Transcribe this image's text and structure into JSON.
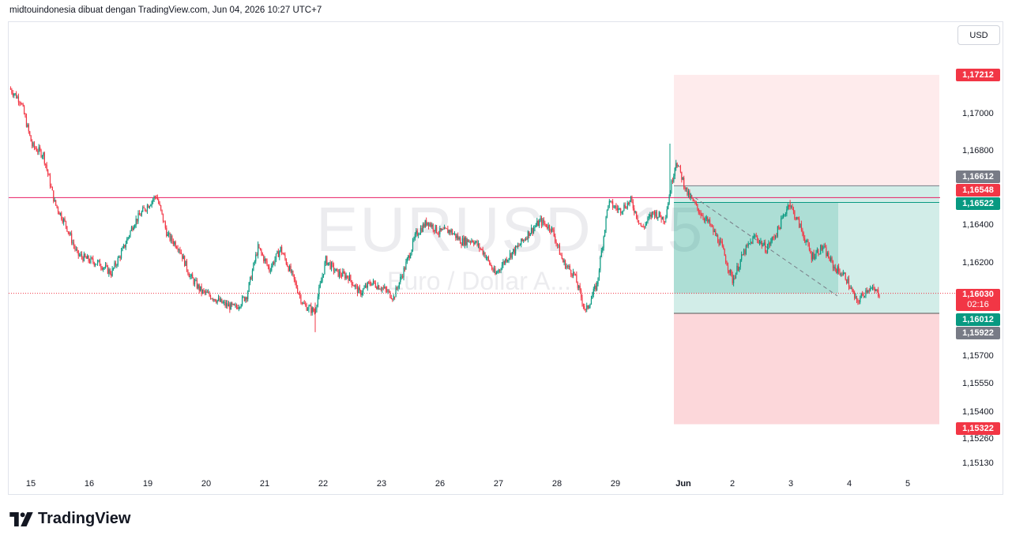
{
  "header": {
    "text": "midtouindonesia dibuat dengan TradingView.com, Jun 04, 2026 10:27 UTC+7"
  },
  "currency_button": "USD",
  "watermark": {
    "symbol": "EURUSD, 15",
    "description": "Euro / Dollar A..."
  },
  "logo": {
    "text": "TradingView",
    "icon": "tradingview-logo-icon"
  },
  "price_labels": {
    "stop_top": "1,17212",
    "entry_high": "1,16612",
    "level_line": "1,16548",
    "target_entry": "1,16522",
    "current_price": "1,16030",
    "countdown": "02:16",
    "position_low": "1,16012",
    "stop_line": "1,15922",
    "stop_bottom": "1,15322"
  },
  "colors": {
    "bull": "#089981",
    "bear": "#f23645",
    "level": "#e91e63",
    "gray_label": "#787b86",
    "profit_zone": "rgba(8,153,129,0.18)",
    "loss_zone": "rgba(242,54,69,0.2)"
  },
  "chart_data": {
    "type": "candlestick",
    "symbol": "EURUSD",
    "timeframe": "15",
    "y_ticks": [
      "1,17000",
      "1,16800",
      "1,16400",
      "1,16200",
      "1,15700",
      "1,15550",
      "1,15400",
      "1,15260",
      "1,15130"
    ],
    "x_ticks": [
      "15",
      "16",
      "19",
      "20",
      "21",
      "22",
      "23",
      "26",
      "27",
      "28",
      "29",
      "Jun",
      "2",
      "3",
      "4",
      "5"
    ],
    "ylim": [
      1.1509,
      1.1734
    ],
    "horizontal_level": 1.16548,
    "current_price": 1.1603,
    "position_tool": {
      "entry": 1.16522,
      "upper_bound": 1.16612,
      "lower_bound": 1.15922,
      "zone_top": 1.17212,
      "zone_bottom": 1.15322
    },
    "path_anchor_prices": [
      [
        0,
        1.1714
      ],
      [
        1,
        1.1707
      ],
      [
        2,
        1.1683
      ],
      [
        3,
        1.1678
      ],
      [
        4,
        1.1652
      ],
      [
        5,
        1.164
      ],
      [
        6,
        1.1624
      ],
      [
        7,
        1.1621
      ],
      [
        8,
        1.1619
      ],
      [
        9,
        1.1614
      ],
      [
        10,
        1.1626
      ],
      [
        11,
        1.1641
      ],
      [
        12,
        1.1649
      ],
      [
        13,
        1.1656
      ],
      [
        14,
        1.1634
      ],
      [
        15,
        1.1628
      ],
      [
        16,
        1.1612
      ],
      [
        17,
        1.1604
      ],
      [
        18,
        1.1601
      ],
      [
        19,
        1.1597
      ],
      [
        20,
        1.1595
      ],
      [
        21,
        1.1602
      ],
      [
        22,
        1.1628
      ],
      [
        23,
        1.1616
      ],
      [
        24,
        1.1627
      ],
      [
        25,
        1.1613
      ],
      [
        26,
        1.1597
      ],
      [
        27,
        1.1593
      ],
      [
        28,
        1.1621
      ],
      [
        29,
        1.1614
      ],
      [
        30,
        1.1612
      ],
      [
        31,
        1.1603
      ],
      [
        32,
        1.1609
      ],
      [
        33,
        1.1606
      ],
      [
        34,
        1.1601
      ],
      [
        35,
        1.1617
      ],
      [
        36,
        1.1635
      ],
      [
        37,
        1.1642
      ],
      [
        38,
        1.1636
      ],
      [
        39,
        1.1637
      ],
      [
        40,
        1.1631
      ],
      [
        41,
        1.1632
      ],
      [
        42,
        1.1625
      ],
      [
        43,
        1.1613
      ],
      [
        44,
        1.1622
      ],
      [
        45,
        1.1628
      ],
      [
        46,
        1.1636
      ],
      [
        47,
        1.1642
      ],
      [
        48,
        1.1638
      ],
      [
        49,
        1.162
      ],
      [
        50,
        1.1613
      ],
      [
        51,
        1.1593
      ],
      [
        52,
        1.1608
      ],
      [
        53,
        1.1652
      ],
      [
        54,
        1.1648
      ],
      [
        55,
        1.1653
      ],
      [
        56,
        1.1638
      ],
      [
        57,
        1.1647
      ],
      [
        58,
        1.1643
      ],
      [
        59,
        1.1675
      ],
      [
        60,
        1.1657
      ],
      [
        61,
        1.1648
      ],
      [
        62,
        1.164
      ],
      [
        63,
        1.1629
      ],
      [
        64,
        1.161
      ],
      [
        65,
        1.1625
      ],
      [
        66,
        1.1634
      ],
      [
        67,
        1.1627
      ],
      [
        68,
        1.1637
      ],
      [
        69,
        1.1652
      ],
      [
        70,
        1.1639
      ],
      [
        71,
        1.1623
      ],
      [
        72,
        1.1628
      ],
      [
        73,
        1.1617
      ],
      [
        74,
        1.1612
      ],
      [
        75,
        1.1598
      ],
      [
        76,
        1.1606
      ],
      [
        77,
        1.1603
      ]
    ]
  }
}
